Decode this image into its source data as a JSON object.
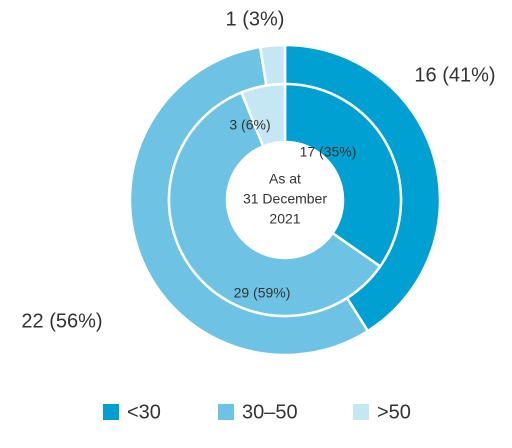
{
  "chart_data": [
    {
      "type": "donut",
      "categories": [
        "<30",
        "30–50",
        ">50"
      ],
      "colors": [
        "#00a0d2",
        "#6ec3e4",
        "#c5e6f3"
      ],
      "values": [
        16,
        22,
        1
      ],
      "value_labels": [
        "16 (41%)",
        "22 (56%)",
        "1 (3%)"
      ],
      "center_label": [
        "As at",
        "31 December",
        "2021"
      ]
    },
    {
      "type": "donut",
      "colors": [
        "#00a0d2",
        "#6ec3e4",
        "#c5e6f3"
      ],
      "values": [
        17,
        29,
        3
      ],
      "value_labels": [
        "17 (35%)",
        "29 (59%)",
        "3 (6%)"
      ]
    }
  ]
}
